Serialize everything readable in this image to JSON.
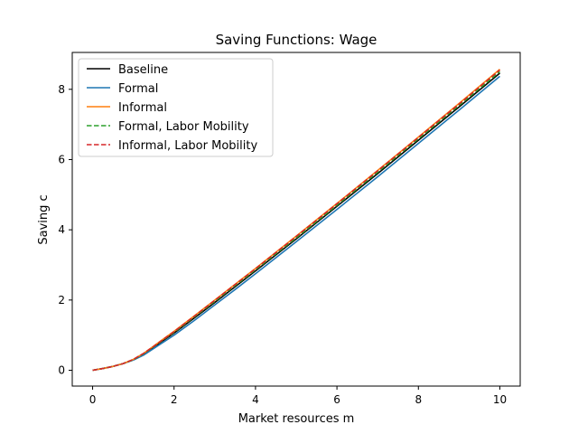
{
  "chart_data": {
    "type": "line",
    "title": "Saving Functions: Wage",
    "xlabel": "Market resources m",
    "ylabel": "Saving c",
    "xlim": [
      -0.5,
      10.5
    ],
    "ylim": [
      -0.45,
      9.05
    ],
    "xticks": [
      0,
      2,
      4,
      6,
      8,
      10
    ],
    "yticks": [
      0,
      2,
      4,
      6,
      8
    ],
    "grid": false,
    "legend_position": "top-left",
    "x": [
      0,
      0.25,
      0.5,
      0.75,
      1.0,
      1.25,
      1.5,
      1.75,
      2.0,
      2.5,
      3.0,
      3.5,
      4.0,
      5.0,
      6.0,
      7.0,
      8.0,
      9.0,
      10.0
    ],
    "series": [
      {
        "name": "Baseline",
        "color": "#000000",
        "dash": "solid",
        "values": [
          0,
          0.05,
          0.11,
          0.19,
          0.3,
          0.46,
          0.66,
          0.86,
          1.06,
          1.49,
          1.93,
          2.38,
          2.83,
          3.74,
          4.67,
          5.6,
          6.55,
          7.5,
          8.46
        ]
      },
      {
        "name": "Formal",
        "color": "#1f77b4",
        "dash": "solid",
        "values": [
          0,
          0.05,
          0.11,
          0.19,
          0.29,
          0.43,
          0.62,
          0.81,
          1.0,
          1.42,
          1.86,
          2.3,
          2.75,
          3.66,
          4.58,
          5.51,
          6.46,
          7.41,
          8.37
        ]
      },
      {
        "name": "Informal",
        "color": "#ff7f0e",
        "dash": "solid",
        "values": [
          0,
          0.05,
          0.11,
          0.19,
          0.31,
          0.48,
          0.69,
          0.9,
          1.11,
          1.55,
          2.0,
          2.45,
          2.9,
          3.82,
          4.75,
          5.69,
          6.64,
          7.6,
          8.57
        ]
      },
      {
        "name": "Formal, Labor Mobility",
        "color": "#2ca02c",
        "dash": "dashed",
        "values": [
          0,
          0.05,
          0.11,
          0.19,
          0.3,
          0.47,
          0.67,
          0.88,
          1.08,
          1.52,
          1.96,
          2.41,
          2.86,
          3.77,
          4.7,
          5.64,
          6.59,
          7.54,
          8.5
        ]
      },
      {
        "name": "Informal, Labor Mobility",
        "color": "#d62728",
        "dash": "dashed",
        "values": [
          0,
          0.05,
          0.11,
          0.19,
          0.31,
          0.48,
          0.68,
          0.89,
          1.1,
          1.54,
          1.99,
          2.44,
          2.89,
          3.81,
          4.74,
          5.68,
          6.63,
          7.58,
          8.55
        ]
      }
    ]
  }
}
